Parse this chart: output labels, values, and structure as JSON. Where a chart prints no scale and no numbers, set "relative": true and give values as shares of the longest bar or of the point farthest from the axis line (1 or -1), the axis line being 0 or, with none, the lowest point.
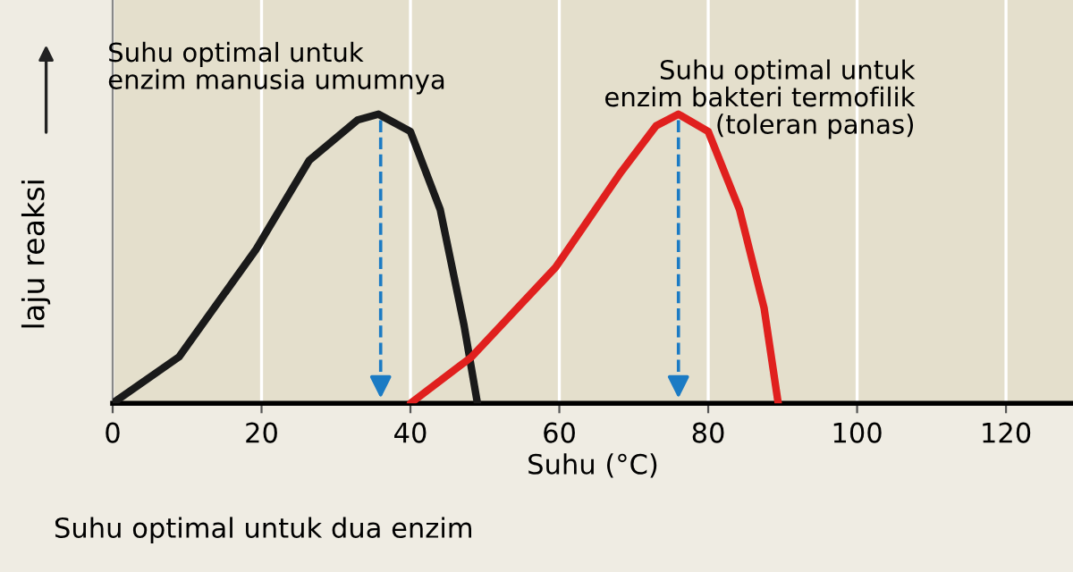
{
  "chart_data": {
    "type": "line",
    "relative": true,
    "xlabel": "Suhu (°C)",
    "ylabel": "laju reaksi",
    "xlim": [
      0,
      129
    ],
    "xticks": [
      0,
      20,
      40,
      60,
      80,
      100,
      120
    ],
    "grid": "x",
    "marker": "none",
    "line_style": "solid",
    "series": [
      {
        "color": "#1a1a1a",
        "x": [
          0,
          8.9,
          19.2,
          26.4,
          32.9,
          35.7,
          40,
          44,
          47.2,
          49
        ],
        "values": [
          0,
          0.16,
          0.53,
          0.84,
          0.98,
          1,
          0.94,
          0.67,
          0.27,
          0
        ]
      },
      {
        "color": "#e0201e",
        "x": [
          40,
          48.2,
          59.5,
          68.3,
          73,
          76,
          80,
          84.2,
          87.5,
          89.4
        ],
        "values": [
          0,
          0.16,
          0.47,
          0.8,
          0.96,
          1,
          0.94,
          0.67,
          0.33,
          0
        ]
      }
    ],
    "ref_lines": [
      {
        "axis": "x",
        "value": 36,
        "color": "#1b7bc4",
        "line_style": "dashed"
      },
      {
        "axis": "x",
        "value": 76,
        "color": "#1b7bc4",
        "line_style": "dashed"
      }
    ],
    "annotations": [
      {
        "text": "Suhu optimal untuk\nenzim manusia umumnya",
        "x": 36,
        "y": 1
      },
      {
        "text": "Suhu optimal untuk\nenzim bakteri termofilik\n(toleran panas)",
        "x": 76,
        "y": 1
      },
      "Suhu optimal untuk dua enzim"
    ]
  }
}
